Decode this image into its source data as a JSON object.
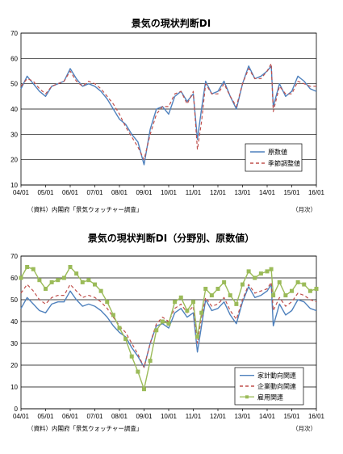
{
  "chart_data": [
    {
      "type": "line",
      "title": "景気の現状判断DI",
      "source_note": "（資料）内閣府「景気ウォッチャー調査」",
      "unit_label": "（月次）",
      "x_ticks": [
        "04/01",
        "05/01",
        "06/01",
        "07/01",
        "08/01",
        "09/01",
        "10/01",
        "11/01",
        "12/01",
        "13/01",
        "14/01",
        "15/01",
        "16/01"
      ],
      "x_range": [
        "04/01",
        "16/01"
      ],
      "y_ticks": [
        10,
        20,
        30,
        40,
        50,
        60,
        70
      ],
      "ylim": [
        10,
        70
      ],
      "grid": true,
      "legend_position": "bottom-right",
      "series": [
        {
          "name": "原数値",
          "color": "#4F81BD",
          "dash": "solid",
          "points": [
            [
              "04/01",
              48
            ],
            [
              "04/04",
              53
            ],
            [
              "04/07",
              50
            ],
            [
              "04/10",
              47
            ],
            [
              "05/01",
              45
            ],
            [
              "05/04",
              49
            ],
            [
              "05/07",
              50
            ],
            [
              "05/10",
              51
            ],
            [
              "06/01",
              56
            ],
            [
              "06/04",
              52
            ],
            [
              "06/07",
              49
            ],
            [
              "06/10",
              50
            ],
            [
              "07/01",
              49
            ],
            [
              "07/04",
              47
            ],
            [
              "07/07",
              44
            ],
            [
              "07/10",
              40
            ],
            [
              "08/01",
              36
            ],
            [
              "08/04",
              34
            ],
            [
              "08/07",
              30
            ],
            [
              "08/10",
              27
            ],
            [
              "09/01",
              18
            ],
            [
              "09/04",
              32
            ],
            [
              "09/07",
              40
            ],
            [
              "09/10",
              41
            ],
            [
              "10/01",
              38
            ],
            [
              "10/04",
              45
            ],
            [
              "10/07",
              47
            ],
            [
              "10/10",
              43
            ],
            [
              "11/01",
              46
            ],
            [
              "11/03",
              28
            ],
            [
              "11/05",
              40
            ],
            [
              "11/07",
              51
            ],
            [
              "11/10",
              46
            ],
            [
              "12/01",
              47
            ],
            [
              "12/04",
              51
            ],
            [
              "12/07",
              45
            ],
            [
              "12/10",
              40
            ],
            [
              "13/01",
              50
            ],
            [
              "13/04",
              57
            ],
            [
              "13/07",
              52
            ],
            [
              "13/10",
              53
            ],
            [
              "14/01",
              55
            ],
            [
              "14/03",
              57
            ],
            [
              "14/04",
              41
            ],
            [
              "14/07",
              50
            ],
            [
              "14/10",
              45
            ],
            [
              "15/01",
              47
            ],
            [
              "15/04",
              53
            ],
            [
              "15/07",
              51
            ],
            [
              "15/10",
              48
            ],
            [
              "16/01",
              47
            ]
          ]
        },
        {
          "name": "季節調整値",
          "color": "#C0504D",
          "dash": "dashed",
          "points": [
            [
              "04/01",
              49
            ],
            [
              "04/04",
              52
            ],
            [
              "04/07",
              51
            ],
            [
              "04/10",
              48
            ],
            [
              "05/01",
              46
            ],
            [
              "05/04",
              49
            ],
            [
              "05/07",
              50
            ],
            [
              "05/10",
              51
            ],
            [
              "06/01",
              55
            ],
            [
              "06/04",
              51
            ],
            [
              "06/07",
              49
            ],
            [
              "06/10",
              51
            ],
            [
              "07/01",
              50
            ],
            [
              "07/04",
              48
            ],
            [
              "07/07",
              45
            ],
            [
              "07/10",
              42
            ],
            [
              "08/01",
              38
            ],
            [
              "08/04",
              33
            ],
            [
              "08/07",
              29
            ],
            [
              "08/10",
              25
            ],
            [
              "09/01",
              20
            ],
            [
              "09/04",
              30
            ],
            [
              "09/07",
              38
            ],
            [
              "09/10",
              41
            ],
            [
              "10/01",
              41
            ],
            [
              "10/04",
              46
            ],
            [
              "10/07",
              47
            ],
            [
              "10/10",
              42
            ],
            [
              "11/01",
              47
            ],
            [
              "11/03",
              24
            ],
            [
              "11/05",
              35
            ],
            [
              "11/07",
              50
            ],
            [
              "11/10",
              46
            ],
            [
              "12/01",
              46
            ],
            [
              "12/04",
              50
            ],
            [
              "12/07",
              45
            ],
            [
              "12/10",
              41
            ],
            [
              "13/01",
              50
            ],
            [
              "13/04",
              56
            ],
            [
              "13/07",
              52
            ],
            [
              "13/10",
              52
            ],
            [
              "14/01",
              55
            ],
            [
              "14/03",
              58
            ],
            [
              "14/04",
              39
            ],
            [
              "14/07",
              49
            ],
            [
              "14/10",
              46
            ],
            [
              "15/01",
              46
            ],
            [
              "15/04",
              51
            ],
            [
              "15/07",
              50
            ],
            [
              "15/10",
              49
            ],
            [
              "16/01",
              49
            ]
          ]
        }
      ]
    },
    {
      "type": "line",
      "title": "景気の現状判断DI（分野別、原数値）",
      "source_note": "（資料）内閣府「景気ウォッチャー調査」",
      "unit_label": "（月次）",
      "x_ticks": [
        "04/01",
        "05/01",
        "06/01",
        "07/01",
        "08/01",
        "09/01",
        "10/01",
        "11/01",
        "12/01",
        "13/01",
        "14/01",
        "15/01",
        "16/01"
      ],
      "x_range": [
        "04/01",
        "16/01"
      ],
      "y_ticks": [
        0,
        10,
        20,
        30,
        40,
        50,
        60,
        70
      ],
      "ylim": [
        0,
        70
      ],
      "grid": true,
      "legend_position": "bottom-right",
      "series": [
        {
          "name": "家計動向関連",
          "color": "#4F81BD",
          "dash": "solid",
          "marker": "none",
          "points": [
            [
              "04/01",
              46
            ],
            [
              "04/04",
              51
            ],
            [
              "04/07",
              48
            ],
            [
              "04/10",
              45
            ],
            [
              "05/01",
              44
            ],
            [
              "05/04",
              48
            ],
            [
              "05/07",
              49
            ],
            [
              "05/10",
              49
            ],
            [
              "06/01",
              54
            ],
            [
              "06/04",
              50
            ],
            [
              "06/07",
              47
            ],
            [
              "06/10",
              48
            ],
            [
              "07/01",
              47
            ],
            [
              "07/04",
              45
            ],
            [
              "07/07",
              42
            ],
            [
              "07/10",
              38
            ],
            [
              "08/01",
              35
            ],
            [
              "08/04",
              33
            ],
            [
              "08/07",
              28
            ],
            [
              "08/10",
              24
            ],
            [
              "09/01",
              19
            ],
            [
              "09/04",
              30
            ],
            [
              "09/07",
              38
            ],
            [
              "09/10",
              39
            ],
            [
              "10/01",
              37
            ],
            [
              "10/04",
              44
            ],
            [
              "10/07",
              46
            ],
            [
              "10/10",
              42
            ],
            [
              "11/01",
              44
            ],
            [
              "11/03",
              26
            ],
            [
              "11/05",
              38
            ],
            [
              "11/07",
              50
            ],
            [
              "11/10",
              45
            ],
            [
              "12/01",
              46
            ],
            [
              "12/04",
              49
            ],
            [
              "12/07",
              43
            ],
            [
              "12/10",
              39
            ],
            [
              "13/01",
              49
            ],
            [
              "13/04",
              56
            ],
            [
              "13/07",
              51
            ],
            [
              "13/10",
              52
            ],
            [
              "14/01",
              54
            ],
            [
              "14/03",
              57
            ],
            [
              "14/04",
              38
            ],
            [
              "14/07",
              48
            ],
            [
              "14/10",
              43
            ],
            [
              "15/01",
              45
            ],
            [
              "15/04",
              50
            ],
            [
              "15/07",
              49
            ],
            [
              "15/10",
              46
            ],
            [
              "16/01",
              45
            ]
          ]
        },
        {
          "name": "企業動向関連",
          "color": "#C0504D",
          "dash": "dashed",
          "marker": "none",
          "points": [
            [
              "04/01",
              53
            ],
            [
              "04/04",
              57
            ],
            [
              "04/07",
              54
            ],
            [
              "04/10",
              50
            ],
            [
              "05/01",
              48
            ],
            [
              "05/04",
              51
            ],
            [
              "05/07",
              52
            ],
            [
              "05/10",
              52
            ],
            [
              "06/01",
              57
            ],
            [
              "06/04",
              54
            ],
            [
              "06/07",
              51
            ],
            [
              "06/10",
              52
            ],
            [
              "07/01",
              51
            ],
            [
              "07/04",
              49
            ],
            [
              "07/07",
              46
            ],
            [
              "07/10",
              42
            ],
            [
              "08/01",
              38
            ],
            [
              "08/04",
              35
            ],
            [
              "08/07",
              30
            ],
            [
              "08/10",
              25
            ],
            [
              "09/01",
              19
            ],
            [
              "09/04",
              30
            ],
            [
              "09/07",
              39
            ],
            [
              "09/10",
              42
            ],
            [
              "10/01",
              40
            ],
            [
              "10/04",
              46
            ],
            [
              "10/07",
              48
            ],
            [
              "10/10",
              44
            ],
            [
              "11/01",
              47
            ],
            [
              "11/03",
              30
            ],
            [
              "11/05",
              42
            ],
            [
              "11/07",
              51
            ],
            [
              "11/10",
              47
            ],
            [
              "12/01",
              48
            ],
            [
              "12/04",
              51
            ],
            [
              "12/07",
              45
            ],
            [
              "12/10",
              41
            ],
            [
              "13/01",
              50
            ],
            [
              "13/04",
              57
            ],
            [
              "13/07",
              53
            ],
            [
              "13/10",
              54
            ],
            [
              "14/01",
              55
            ],
            [
              "14/03",
              58
            ],
            [
              "14/04",
              45
            ],
            [
              "14/07",
              51
            ],
            [
              "14/10",
              47
            ],
            [
              "15/01",
              49
            ],
            [
              "15/04",
              53
            ],
            [
              "15/07",
              52
            ],
            [
              "15/10",
              50
            ],
            [
              "16/01",
              49
            ]
          ]
        },
        {
          "name": "雇用関連",
          "color": "#9BBB59",
          "dash": "solid",
          "marker": "square",
          "points": [
            [
              "04/01",
              60
            ],
            [
              "04/04",
              65
            ],
            [
              "04/07",
              64
            ],
            [
              "04/10",
              59
            ],
            [
              "05/01",
              55
            ],
            [
              "05/04",
              58
            ],
            [
              "05/07",
              59
            ],
            [
              "05/10",
              60
            ],
            [
              "06/01",
              65
            ],
            [
              "06/04",
              62
            ],
            [
              "06/07",
              58
            ],
            [
              "06/10",
              59
            ],
            [
              "07/01",
              57
            ],
            [
              "07/04",
              54
            ],
            [
              "07/07",
              49
            ],
            [
              "07/10",
              43
            ],
            [
              "08/01",
              37
            ],
            [
              "08/04",
              32
            ],
            [
              "08/07",
              24
            ],
            [
              "08/10",
              17
            ],
            [
              "09/01",
              9
            ],
            [
              "09/04",
              22
            ],
            [
              "09/07",
              36
            ],
            [
              "09/10",
              40
            ],
            [
              "10/01",
              39
            ],
            [
              "10/04",
              49
            ],
            [
              "10/07",
              51
            ],
            [
              "10/10",
              45
            ],
            [
              "11/01",
              49
            ],
            [
              "11/03",
              33
            ],
            [
              "11/05",
              44
            ],
            [
              "11/07",
              55
            ],
            [
              "11/10",
              52
            ],
            [
              "12/01",
              55
            ],
            [
              "12/04",
              58
            ],
            [
              "12/07",
              52
            ],
            [
              "12/10",
              48
            ],
            [
              "13/01",
              57
            ],
            [
              "13/04",
              63
            ],
            [
              "13/07",
              60
            ],
            [
              "13/10",
              62
            ],
            [
              "14/01",
              63
            ],
            [
              "14/03",
              64
            ],
            [
              "14/04",
              52
            ],
            [
              "14/07",
              58
            ],
            [
              "14/10",
              52
            ],
            [
              "15/01",
              54
            ],
            [
              "15/04",
              58
            ],
            [
              "15/07",
              57
            ],
            [
              "15/10",
              54
            ],
            [
              "16/01",
              55
            ]
          ]
        }
      ]
    }
  ]
}
